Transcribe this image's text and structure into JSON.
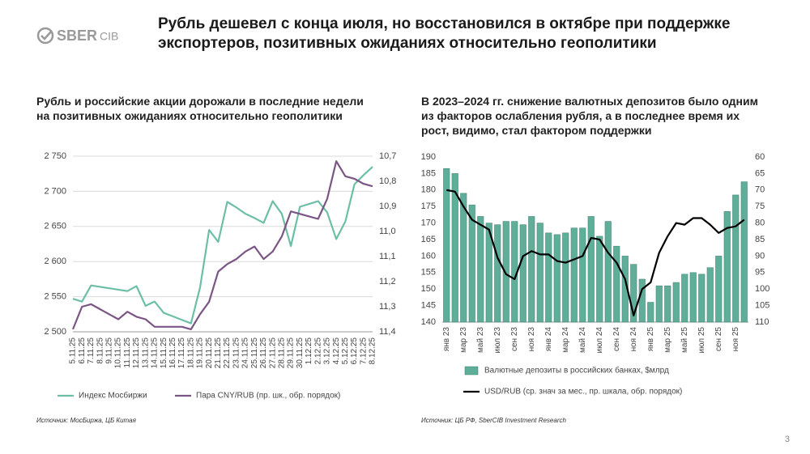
{
  "header": {
    "logo": "SBER",
    "logo_sub": "CIB",
    "title": "Рубль дешевел с конца июля, но восстановился в октябре при поддержке экспортеров, позитивных ожиданиях относительно геополитики"
  },
  "chart_data": [
    {
      "type": "line",
      "title": "Рубль и российские акции дорожали в последние недели на позитивных ожиданиях относительно геополитики",
      "categories": [
        "5.11.25",
        "6.11.25",
        "7.11.25",
        "8.11.25",
        "9.11.25",
        "10.11.25",
        "11.11.25",
        "12.11.25",
        "13.11.25",
        "14.11.25",
        "15.11.25",
        "16.11.25",
        "17.11.25",
        "18.11.25",
        "19.11.25",
        "20.11.25",
        "21.11.25",
        "22.11.25",
        "23.11.25",
        "24.11.25",
        "25.11.25",
        "26.11.25",
        "27.11.25",
        "28.11.25",
        "29.11.25",
        "30.11.25",
        "1.12.25",
        "2.12.25",
        "3.12.25",
        "4.12.25",
        "5.12.25",
        "6.12.25",
        "7.12.25",
        "8.12.25"
      ],
      "series": [
        {
          "name": "Индекс Мосбиржи",
          "color": "#6cbfa6",
          "type": "line",
          "values": [
            2547,
            2543,
            2566,
            2564,
            2562,
            2560,
            2558,
            2565,
            2537,
            2543,
            2527,
            2522,
            2517,
            2512,
            2563,
            2645,
            2628,
            2685,
            2677,
            2668,
            2662,
            2655,
            2686,
            2668,
            2622,
            2678,
            2682,
            2686,
            2670,
            2632,
            2657,
            2710,
            2723,
            2735
          ]
        },
        {
          "name": "Пара CNY/RUB (пр. шк., обр. порядок)",
          "color": "#7a5585",
          "type": "line",
          "axis": "y2",
          "values": [
            11.39,
            11.3,
            11.29,
            11.31,
            11.33,
            11.35,
            11.32,
            11.34,
            11.35,
            11.38,
            11.38,
            11.38,
            11.38,
            11.39,
            11.33,
            11.28,
            11.16,
            11.13,
            11.11,
            11.08,
            11.06,
            11.11,
            11.08,
            11.02,
            10.92,
            10.93,
            10.94,
            10.95,
            10.87,
            10.72,
            10.78,
            10.79,
            10.81,
            10.82
          ]
        }
      ],
      "ylim": [
        2500,
        2750
      ],
      "yticks": [
        {
          "value": 2500,
          "label": "2 500"
        },
        {
          "value": 2550,
          "label": "2 550"
        },
        {
          "value": 2600,
          "label": "2 600"
        },
        {
          "value": 2650,
          "label": "2 650"
        },
        {
          "value": 2700,
          "label": "2 700"
        },
        {
          "value": 2750,
          "label": "2 750"
        }
      ],
      "y2lim": [
        11.4,
        10.7
      ],
      "y2ticks": [
        {
          "value": 10.7,
          "label": "10,7"
        },
        {
          "value": 10.8,
          "label": "10,8"
        },
        {
          "value": 10.9,
          "label": "10,9"
        },
        {
          "value": 11.0,
          "label": "11,0"
        },
        {
          "value": 11.1,
          "label": "11,1"
        },
        {
          "value": 11.2,
          "label": "11,2"
        },
        {
          "value": 11.3,
          "label": "11,3"
        },
        {
          "value": 11.4,
          "label": "11,4"
        }
      ],
      "grid": true,
      "source": "Источник: МосБиржа, ЦБ Китая"
    },
    {
      "type": "combo",
      "title": "В 2023–2024 гг. снижение валютных депозитов было одним из факторов ослабления рубля, а в последнее время их рост, видимо, стал фактором поддержки",
      "categories": [
        "янв 23",
        null,
        "мар 23",
        null,
        "май 23",
        null,
        "июл 23",
        null,
        "сен 23",
        null,
        "ноя 23",
        null,
        "янв 24",
        null,
        "мар 24",
        null,
        "май 24",
        null,
        "июл 24",
        null,
        "сен 24",
        null,
        "ноя 24",
        null,
        "янв 25",
        null,
        "мар 25",
        null,
        "май 25",
        null,
        "июл 25",
        null,
        "сен 25",
        null,
        "ноя 25",
        null
      ],
      "series": [
        {
          "name": "Валютные депозиты в российских банках, $млрд",
          "color": "#5fae9a",
          "type": "bar",
          "values": [
            186.5,
            185,
            179,
            175.5,
            172,
            170,
            169.5,
            170.5,
            170.5,
            169.5,
            172,
            170,
            167,
            166.5,
            167,
            168.5,
            168.5,
            172,
            166,
            170.5,
            163,
            160,
            157.5,
            153,
            146,
            151,
            151,
            152,
            154.5,
            155,
            154.5,
            156.5,
            160,
            173.5,
            178.5,
            182.5
          ]
        },
        {
          "name": "USD/RUB (ср. знач за мес., пр. шкала, обр. порядок)",
          "color": "#000000",
          "type": "line",
          "axis": "y2",
          "values": [
            70,
            70.5,
            75,
            79,
            80.5,
            82,
            90.5,
            95.5,
            97,
            90,
            88.5,
            89.5,
            89.5,
            91.5,
            92,
            91,
            90,
            84.5,
            85,
            89,
            92,
            97,
            108,
            100,
            98,
            89,
            84,
            80,
            80.5,
            78.5,
            78.5,
            80.5,
            83,
            81.5,
            81,
            79
          ]
        }
      ],
      "ylim": [
        140,
        190
      ],
      "yticks": [
        140,
        145,
        150,
        155,
        160,
        165,
        170,
        175,
        180,
        185,
        190
      ],
      "y2lim": [
        110,
        60
      ],
      "y2ticks": [
        60,
        65,
        70,
        75,
        80,
        85,
        90,
        95,
        100,
        105,
        110
      ],
      "grid": false,
      "source": "Источник: ЦБ РФ, SberCIB Investment Research"
    }
  ],
  "page_number": "3"
}
